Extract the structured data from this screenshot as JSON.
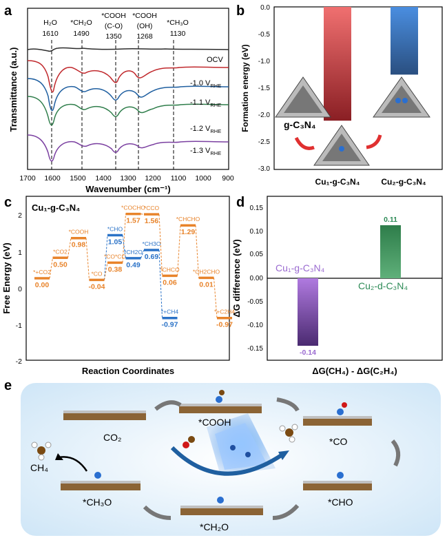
{
  "panels": {
    "a": {
      "letter": "a",
      "peaks": [
        {
          "name": "H₂O",
          "pos": "1610"
        },
        {
          "name": "*CH₂O",
          "pos": "1490"
        },
        {
          "name": "*COOH",
          "sub": "(C-O)",
          "pos": "1350"
        },
        {
          "name": "*COOH",
          "sub": "(OH)",
          "pos": "1268"
        },
        {
          "name": "*CH₃O",
          "pos": "1130"
        }
      ],
      "traces": [
        "OCV",
        "-1.0 V",
        "-1.1 V",
        "-1.2 V",
        "-1.3 V"
      ],
      "trace_sub": "RHE",
      "xlabel": "Wavenumber (cm⁻¹)",
      "ylabel": "Transmittance (a.u.)",
      "xticks": [
        "1700",
        "1600",
        "1500",
        "1400",
        "1300",
        "1200",
        "1100",
        "1000",
        "900"
      ]
    },
    "b": {
      "letter": "b",
      "ylabel": "Formation energy (eV)",
      "yticks": [
        "0.0",
        "-0.5",
        "-1.0",
        "-1.5",
        "-2.0",
        "-2.5",
        "-3.0"
      ],
      "material_label": "g-C₃N₄",
      "bar1": "Cu₁-g-C₃N₄",
      "bar2": "Cu₂-g-C₃N₄"
    },
    "c": {
      "letter": "c",
      "subtitle": "Cu₁-g-C₃N₄",
      "ylabel": "Free Energy (eV)",
      "xlabel": "Reaction Coordinates",
      "yticks": [
        "2",
        "1",
        "0",
        "-1",
        "-2"
      ]
    },
    "d": {
      "letter": "d",
      "ylabel": "ΔG difference (eV)",
      "xlabel": "ΔG(CH₄) - ΔG(C₂H₄)",
      "yticks": [
        "0.15",
        "0.10",
        "0.05",
        "0.00",
        "-0.05",
        "-0.10",
        "-0.15"
      ],
      "label1": "Cu₁-g-C₃N₄",
      "label2": "Cu₂-d-C₃N₄",
      "val1": "-0.14",
      "val2": "0.11"
    },
    "e": {
      "letter": "e",
      "species": [
        "CO₂",
        "*COOH",
        "*CO",
        "*CHO",
        "*CH₂O",
        "*CH₃O",
        "CH₄"
      ]
    }
  },
  "chart_data": [
    {
      "type": "line",
      "panel": "a",
      "xlabel": "Wavenumber (cm-1)",
      "ylabel": "Transmittance (a.u.)",
      "xlim": [
        1700,
        900
      ],
      "series": [
        {
          "name": "OCV",
          "color": "#2b2b2b"
        },
        {
          "name": "-1.0 V RHE",
          "color": "#c0282c"
        },
        {
          "name": "-1.1 V RHE",
          "color": "#1f5fa0"
        },
        {
          "name": "-1.2 V RHE",
          "color": "#2e7d4a"
        },
        {
          "name": "-1.3 V RHE",
          "color": "#7a3fa0"
        }
      ],
      "reference_lines": [
        1610,
        1490,
        1350,
        1268,
        1130
      ]
    },
    {
      "type": "bar",
      "panel": "b",
      "ylabel": "Formation energy (eV)",
      "categories": [
        "Cu1-g-C3N4",
        "Cu2-g-C3N4"
      ],
      "values": [
        -2.1,
        -1.25
      ],
      "ylim": [
        -3.0,
        0.0
      ],
      "colors": [
        "#d94b4b",
        "#3a73c4"
      ]
    },
    {
      "type": "line",
      "panel": "c",
      "ylabel": "Free Energy (eV)",
      "xlabel": "Reaction Coordinates",
      "ylim": [
        -2,
        2
      ],
      "levels": [
        {
          "step": 0,
          "value": 0.0,
          "label": "*+CO2",
          "path": "orange"
        },
        {
          "step": 1,
          "value": 0.5,
          "label": "*CO2",
          "path": "orange"
        },
        {
          "step": 2,
          "value": 0.98,
          "label": "*COOH",
          "path": "orange"
        },
        {
          "step": 3,
          "value": -0.04,
          "label": "*CO",
          "path": "orange"
        },
        {
          "step": 4,
          "value": 1.05,
          "label": "*CHO",
          "path": "blue"
        },
        {
          "step": 4,
          "value": 0.38,
          "label": "*CO*CO",
          "path": "orange"
        },
        {
          "step": 5,
          "value": 1.57,
          "label": "*COCHO",
          "path": "orange"
        },
        {
          "step": 5,
          "value": 0.49,
          "label": "*CH2O",
          "path": "blue"
        },
        {
          "step": 6,
          "value": 1.56,
          "label": "*CCO",
          "path": "orange"
        },
        {
          "step": 6,
          "value": 0.69,
          "label": "*CH3O",
          "path": "blue"
        },
        {
          "step": 7,
          "value": -0.97,
          "label": "*+CH4",
          "path": "blue"
        },
        {
          "step": 7,
          "value": 0.06,
          "label": "*CHCO",
          "path": "orange"
        },
        {
          "step": 8,
          "value": 1.29,
          "label": "*CHCHO",
          "path": "orange"
        },
        {
          "step": 9,
          "value": 0.01,
          "label": "*CH2CHO",
          "path": "orange"
        },
        {
          "step": 10,
          "value": -0.97,
          "label": "*+C2H4",
          "path": "orange"
        }
      ]
    },
    {
      "type": "bar",
      "panel": "d",
      "ylabel": "ΔG difference (eV)",
      "categories": [
        "Cu1-g-C3N4",
        "Cu2-d-C3N4"
      ],
      "values": [
        -0.14,
        0.11
      ],
      "ylim": [
        -0.17,
        0.17
      ],
      "colors": [
        "#7a4bb0",
        "#2e8b57"
      ]
    }
  ]
}
